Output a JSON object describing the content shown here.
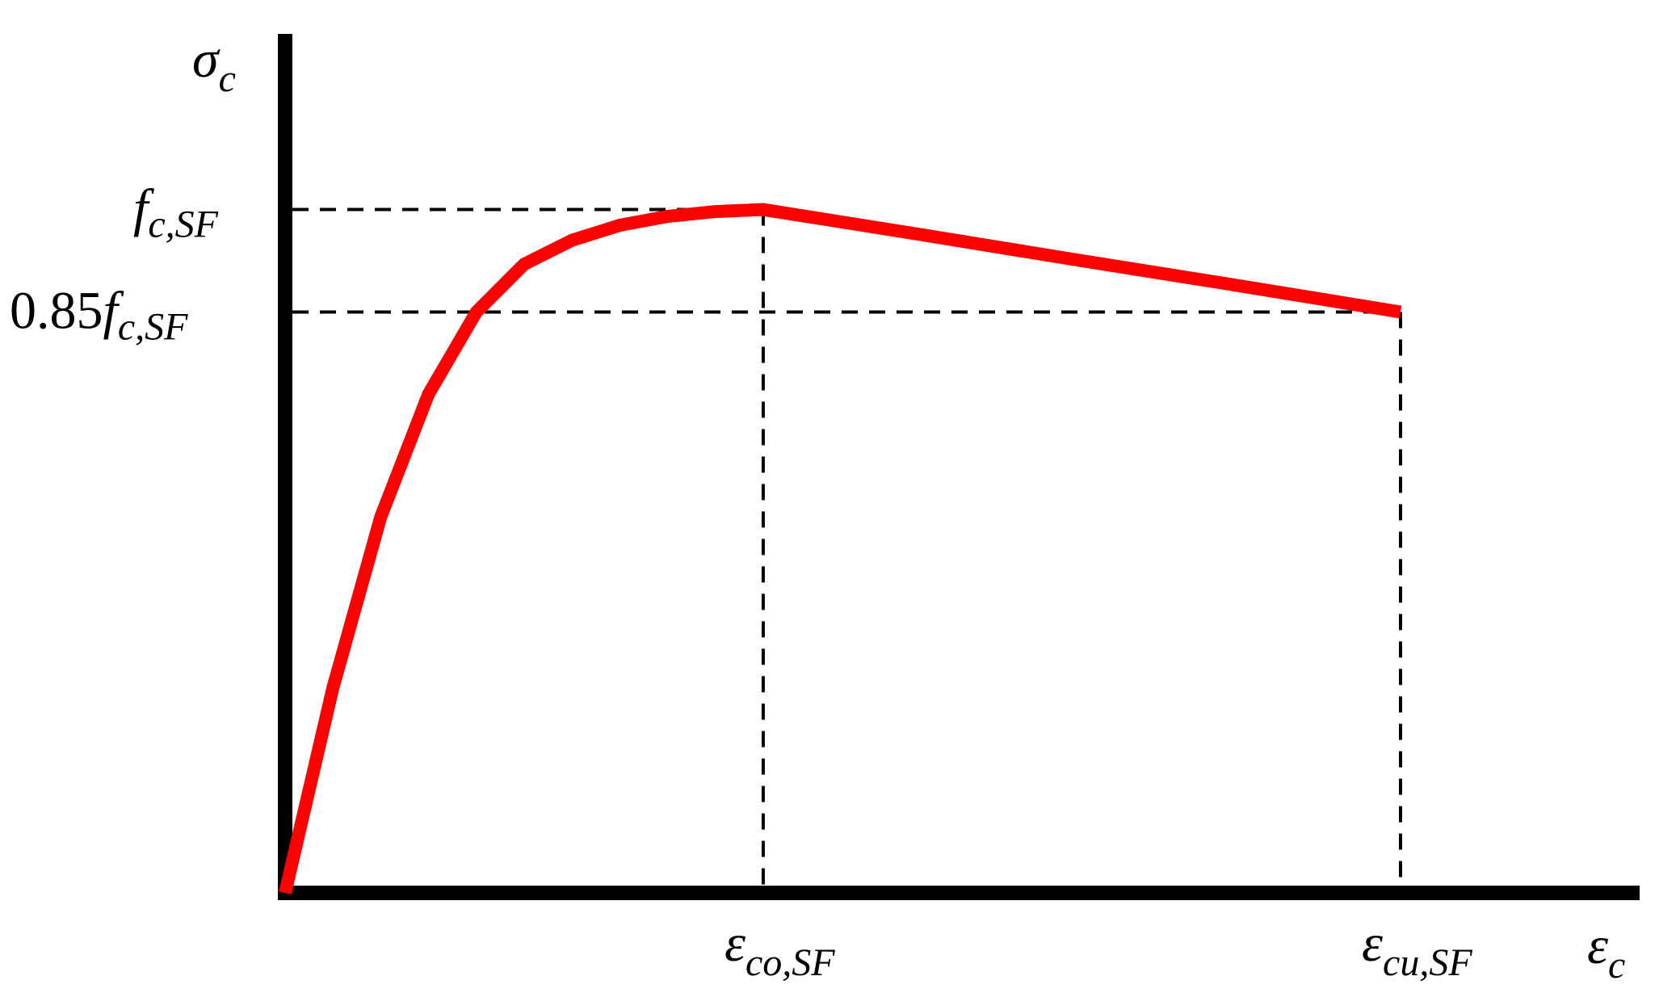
{
  "chart_data": {
    "type": "line",
    "x_label": {
      "main": "ε",
      "sub": "c"
    },
    "y_label": {
      "main": "σ",
      "sub": "c"
    },
    "x_ticks": [
      {
        "key": "eco",
        "main": "ε",
        "sub": "co,SF",
        "value": 1.0
      },
      {
        "key": "ecu",
        "main": "ε",
        "sub": "cu,SF",
        "value": 2.333
      }
    ],
    "y_ticks": [
      {
        "key": "fc",
        "prefix": "",
        "main": "f",
        "sub": "c,SF",
        "value": 1.0
      },
      {
        "key": "fc085",
        "prefix": "0.85",
        "main": "f",
        "sub": "c,SF",
        "value": 0.85
      }
    ],
    "xlim": [
      0,
      2.833
    ],
    "ylim": [
      0,
      1.257
    ],
    "series": [
      {
        "color": "#ff0000",
        "x": [
          0,
          0.1,
          0.2,
          0.3,
          0.4,
          0.5,
          0.6,
          0.7,
          0.8,
          0.9,
          1.0,
          1.333,
          1.667,
          2.0,
          2.333
        ],
        "y": [
          0,
          0.3,
          0.55,
          0.73,
          0.85,
          0.92,
          0.955,
          0.977,
          0.99,
          0.997,
          1.0,
          0.963,
          0.925,
          0.888,
          0.85
        ]
      }
    ],
    "reference_lines": [
      {
        "kind": "dashed",
        "from_x": 1.0,
        "from_y": 1.0
      },
      {
        "kind": "dashed",
        "from_x": 2.333,
        "from_y": 0.85
      }
    ],
    "grid": false,
    "legend": "none"
  }
}
